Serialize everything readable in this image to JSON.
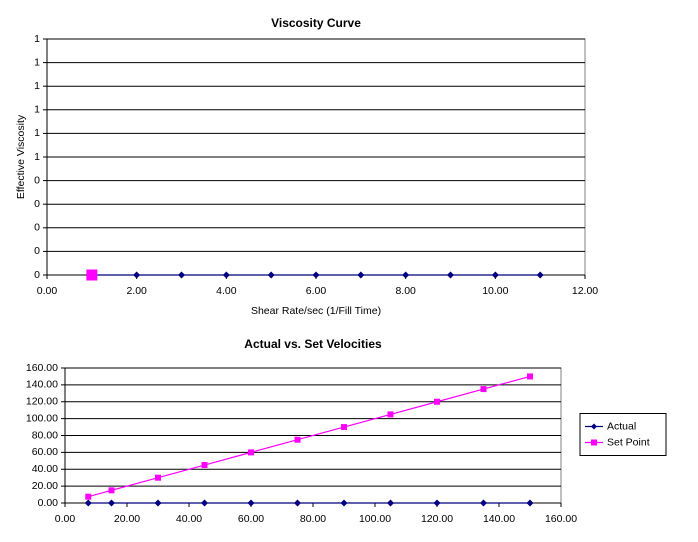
{
  "chart_data": [
    {
      "type": "line",
      "title": "Viscosity Curve",
      "x_label": "Shear Rate/sec  (1/Fill Time)",
      "y_label": "Effective Viscosity",
      "xlim": [
        0,
        12
      ],
      "ylim": [
        0,
        1
      ],
      "xticks": [
        {
          "value": 0,
          "label": "0.00"
        },
        {
          "value": 2,
          "label": "2.00"
        },
        {
          "value": 4,
          "label": "4.00"
        },
        {
          "value": 6,
          "label": "6.00"
        },
        {
          "value": 8,
          "label": "8.00"
        },
        {
          "value": 10,
          "label": "10.00"
        },
        {
          "value": 12,
          "label": "12.00"
        }
      ],
      "yticks": [
        0,
        {
          "value": 0.1,
          "label": "0"
        },
        {
          "value": 0.2,
          "label": "0"
        },
        {
          "value": 0.3,
          "label": "0"
        },
        {
          "value": 0.4,
          "label": "0"
        },
        {
          "value": 0.5,
          "label": "1"
        },
        {
          "value": 0.6,
          "label": "1"
        },
        {
          "value": 0.7,
          "label": "1"
        },
        {
          "value": 0.8,
          "label": "1"
        },
        {
          "value": 0.9,
          "label": "1"
        },
        1
      ],
      "grid": true,
      "series": [
        {
          "color": "#000080",
          "marker": "diamond",
          "x": [
            1,
            2,
            3,
            4,
            5,
            6,
            7,
            8,
            9,
            10,
            11
          ],
          "values": [
            0,
            0,
            0,
            0,
            0,
            0,
            0,
            0,
            0,
            0,
            0
          ]
        },
        {
          "color": "#ff00ff",
          "marker": "bigsquare",
          "x": [
            1
          ],
          "values": [
            0
          ]
        }
      ]
    },
    {
      "type": "line",
      "title": "Actual vs. Set Velocities",
      "xlim": [
        0,
        160
      ],
      "ylim": [
        0,
        160
      ],
      "xticks": [
        {
          "value": 0,
          "label": "0.00"
        },
        {
          "value": 20,
          "label": "20.00"
        },
        {
          "value": 40,
          "label": "40.00"
        },
        {
          "value": 60,
          "label": "60.00"
        },
        {
          "value": 80,
          "label": "80.00"
        },
        {
          "value": 100,
          "label": "100.00"
        },
        {
          "value": 120,
          "label": "120.00"
        },
        {
          "value": 140,
          "label": "140.00"
        },
        {
          "value": 160,
          "label": "160.00"
        }
      ],
      "yticks": [
        {
          "value": 0,
          "label": "0.00"
        },
        {
          "value": 20,
          "label": "20.00"
        },
        {
          "value": 40,
          "label": "40.00"
        },
        {
          "value": 60,
          "label": "60.00"
        },
        {
          "value": 80,
          "label": "80.00"
        },
        {
          "value": 100,
          "label": "100.00"
        },
        {
          "value": 120,
          "label": "120.00"
        },
        {
          "value": 140,
          "label": "140.00"
        },
        {
          "value": 160,
          "label": "160.00"
        }
      ],
      "grid": true,
      "legend": "right",
      "series": [
        {
          "name": "Actual",
          "color": "#000080",
          "marker": "diamond",
          "x": [
            7.5,
            15,
            30,
            45,
            60,
            75,
            90,
            105,
            120,
            135,
            150
          ],
          "values": [
            0,
            0,
            0,
            0,
            0,
            0,
            0,
            0,
            0,
            0,
            0
          ]
        },
        {
          "name": "Set Point",
          "color": "#ff00ff",
          "marker": "square",
          "x": [
            7.5,
            15,
            30,
            45,
            60,
            75,
            90,
            105,
            120,
            135,
            150
          ],
          "values": [
            7.5,
            15,
            30,
            45,
            60,
            75,
            90,
            105,
            120,
            135,
            150
          ]
        }
      ]
    }
  ]
}
